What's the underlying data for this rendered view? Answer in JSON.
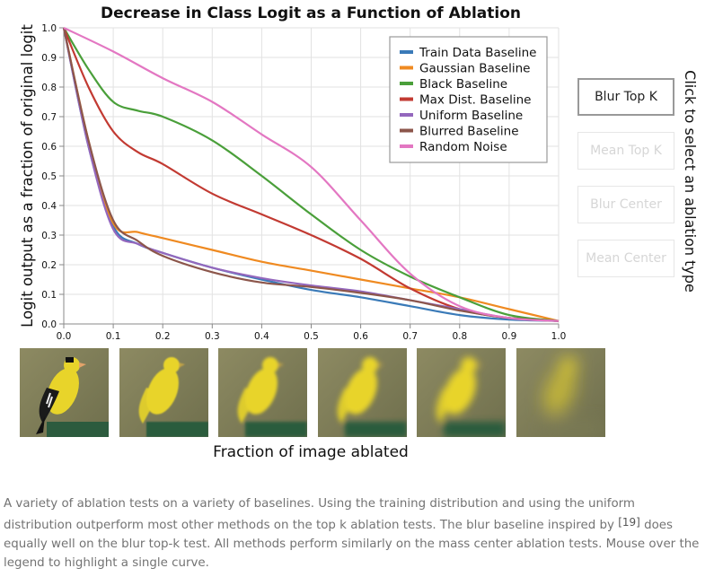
{
  "chart_data": {
    "type": "line",
    "title": "Decrease in Class Logit as a Function of Ablation",
    "xlabel": "Fraction of image ablated",
    "ylabel": "Logit output as a fraction of original logit",
    "xlim": [
      0,
      1
    ],
    "ylim": [
      0,
      1
    ],
    "xticks": [
      "0.0",
      "0.1",
      "0.2",
      "0.3",
      "0.4",
      "0.5",
      "0.6",
      "0.7",
      "0.8",
      "0.9",
      "1.0"
    ],
    "yticks": [
      "0.0",
      "0.1",
      "0.2",
      "0.3",
      "0.4",
      "0.5",
      "0.6",
      "0.7",
      "0.8",
      "0.9",
      "1.0"
    ],
    "grid": true,
    "legend_position": "top-right",
    "series": [
      {
        "name": "Train Data Baseline",
        "color": "#3a7ab8",
        "x": [
          0,
          0.05,
          0.1,
          0.15,
          0.2,
          0.3,
          0.4,
          0.5,
          0.6,
          0.7,
          0.8,
          0.9,
          1.0
        ],
        "y": [
          1.0,
          0.6,
          0.33,
          0.27,
          0.24,
          0.19,
          0.15,
          0.115,
          0.09,
          0.06,
          0.03,
          0.015,
          0.01
        ]
      },
      {
        "name": "Gaussian Baseline",
        "color": "#ef8a21",
        "x": [
          0,
          0.05,
          0.1,
          0.15,
          0.2,
          0.3,
          0.4,
          0.5,
          0.6,
          0.7,
          0.8,
          0.9,
          1.0
        ],
        "y": [
          1.0,
          0.62,
          0.34,
          0.31,
          0.29,
          0.25,
          0.21,
          0.18,
          0.15,
          0.12,
          0.09,
          0.05,
          0.01
        ]
      },
      {
        "name": "Black Baseline",
        "color": "#4a9f3a",
        "x": [
          0,
          0.05,
          0.1,
          0.15,
          0.2,
          0.3,
          0.4,
          0.5,
          0.6,
          0.7,
          0.8,
          0.9,
          1.0
        ],
        "y": [
          1.0,
          0.86,
          0.75,
          0.72,
          0.7,
          0.62,
          0.5,
          0.37,
          0.25,
          0.16,
          0.09,
          0.03,
          0.01
        ]
      },
      {
        "name": "Max Dist. Baseline",
        "color": "#c23a32",
        "x": [
          0,
          0.05,
          0.1,
          0.15,
          0.2,
          0.3,
          0.4,
          0.5,
          0.6,
          0.7,
          0.8,
          0.9,
          1.0
        ],
        "y": [
          1.0,
          0.8,
          0.65,
          0.58,
          0.54,
          0.44,
          0.37,
          0.3,
          0.22,
          0.12,
          0.05,
          0.02,
          0.01
        ]
      },
      {
        "name": "Uniform Baseline",
        "color": "#9467bd",
        "x": [
          0,
          0.05,
          0.1,
          0.15,
          0.2,
          0.3,
          0.4,
          0.5,
          0.6,
          0.7,
          0.8,
          0.9,
          1.0
        ],
        "y": [
          1.0,
          0.6,
          0.32,
          0.27,
          0.24,
          0.19,
          0.155,
          0.13,
          0.11,
          0.08,
          0.05,
          0.02,
          0.01
        ]
      },
      {
        "name": "Blurred Baseline",
        "color": "#8c564b",
        "x": [
          0,
          0.05,
          0.1,
          0.15,
          0.2,
          0.3,
          0.4,
          0.5,
          0.6,
          0.7,
          0.8,
          0.9,
          1.0
        ],
        "y": [
          1.0,
          0.62,
          0.35,
          0.28,
          0.23,
          0.175,
          0.14,
          0.125,
          0.105,
          0.08,
          0.045,
          0.02,
          0.01
        ]
      },
      {
        "name": "Random Noise",
        "color": "#e377c2",
        "x": [
          0,
          0.1,
          0.2,
          0.3,
          0.4,
          0.5,
          0.6,
          0.7,
          0.8,
          0.9,
          1.0
        ],
        "y": [
          1.0,
          0.92,
          0.83,
          0.75,
          0.64,
          0.53,
          0.35,
          0.17,
          0.06,
          0.02,
          0.01
        ]
      }
    ]
  },
  "ablation_selector": {
    "label": "Click to select an ablation type",
    "options": [
      {
        "label": "Blur Top K",
        "active": true
      },
      {
        "label": "Mean Top K",
        "active": false
      },
      {
        "label": "Blur Center",
        "active": false
      },
      {
        "label": "Mean Center",
        "active": false
      }
    ]
  },
  "ablation_images": [
    {
      "fraction": 0.0,
      "blur": 0.0
    },
    {
      "fraction": 0.2,
      "blur": 0.9
    },
    {
      "fraction": 0.4,
      "blur": 1.6
    },
    {
      "fraction": 0.6,
      "blur": 2.6
    },
    {
      "fraction": 0.8,
      "blur": 4.0
    },
    {
      "fraction": 1.0,
      "blur": 9.0
    }
  ],
  "caption": {
    "part1": "A variety of ablation tests on a variety of baselines. Using the training distribution and using the uniform distribution outperform most other methods on the top k ablation tests. The blur baseline inspired by ",
    "ref": "[19]",
    "part2": " does equally well on the blur top-k test. All methods perform similarly on the mass center ablation tests. Mouse over the legend to highlight a single curve."
  },
  "colors": {
    "grid": "#e2e2e2",
    "axis": "#888888",
    "bird": "#e8d42a",
    "background": "#84805a"
  }
}
